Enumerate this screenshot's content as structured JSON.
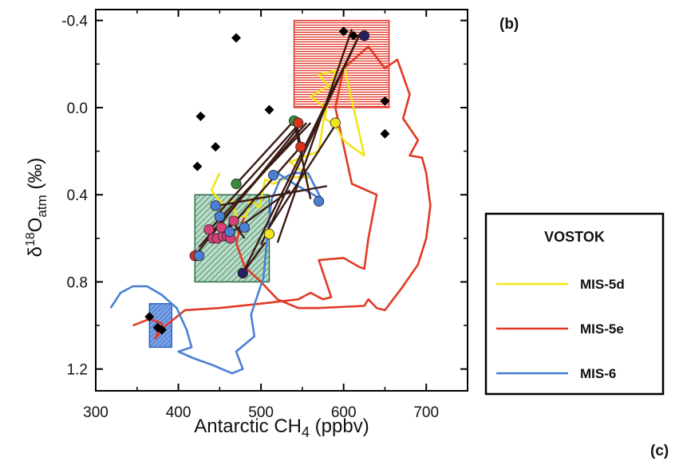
{
  "panel_labels": {
    "top": "(b)",
    "bottom": "(c)"
  },
  "colors": {
    "MIS-5d": "#f2e418",
    "MIS-5e": "#e03a24",
    "MIS-6": "#4a7fd4",
    "connector": "#3a1a14",
    "diamond": "#000000",
    "box_red": "#e0342a",
    "box_green": "#2f6e4a",
    "box_blue": "#2f68c6",
    "dot_pink": "#d8407a",
    "dot_navy": "#2a1f5e",
    "dot_green": "#3a8a3c",
    "dot_red": "#d8321e",
    "dot_yellow": "#f2e418",
    "dot_blue": "#4a7fd4"
  },
  "chart_data": {
    "type": "scatter",
    "title": "",
    "xlabel": "Antarctic CH",
    "xlabel_sub": "4",
    "xlabel_unit": " (ppbv)",
    "ylabel_parts": {
      "delta": "δ",
      "sup": "18",
      "O": "O",
      "sub": "atm",
      "unit": " (‰)"
    },
    "xlim": [
      300,
      750
    ],
    "ylim": [
      1.3,
      -0.45
    ],
    "x_ticks": [
      300,
      400,
      500,
      600,
      700
    ],
    "x_tick_labels": [
      "300",
      "400",
      "500",
      "600",
      "700"
    ],
    "y_ticks": [
      -0.4,
      0.0,
      0.4,
      0.8,
      1.2
    ],
    "y_tick_labels": [
      "-0.4",
      "0.0",
      "0.4",
      "0.8",
      "1.2"
    ],
    "legend": {
      "title": "VOSTOK",
      "position": "right",
      "entries": [
        "MIS-5d",
        "MIS-5e",
        "MIS-6"
      ]
    },
    "boxes": [
      {
        "name": "red",
        "x": [
          540,
          655
        ],
        "y": [
          -0.4,
          0.0
        ],
        "color_key": "box_red"
      },
      {
        "name": "green",
        "x": [
          420,
          510
        ],
        "y": [
          0.4,
          0.8
        ],
        "color_key": "box_green"
      },
      {
        "name": "blue",
        "x": [
          365,
          392
        ],
        "y": [
          0.9,
          1.1
        ],
        "color_key": "box_blue"
      }
    ],
    "series": [
      {
        "name": "MIS-5e",
        "color_key": "MIS-5e",
        "x": [
          345,
          365,
          380,
          372,
          385,
          408,
          450,
          500,
          545,
          560,
          575,
          585,
          570,
          600,
          618,
          625,
          630,
          640,
          610,
          590,
          600,
          630,
          650,
          665,
          680,
          672,
          690,
          680,
          695,
          700,
          705,
          700,
          690,
          670,
          650,
          640,
          630,
          625,
          570,
          545,
          520,
          500,
          480,
          470,
          475,
          480
        ],
        "y": [
          1.0,
          0.97,
          0.99,
          1.06,
          1.0,
          0.93,
          0.92,
          0.9,
          0.88,
          0.85,
          0.88,
          0.87,
          0.7,
          0.69,
          0.73,
          0.74,
          0.6,
          0.4,
          0.35,
          0.0,
          -0.18,
          -0.28,
          -0.18,
          -0.22,
          -0.06,
          0.05,
          0.15,
          0.22,
          0.23,
          0.3,
          0.45,
          0.6,
          0.72,
          0.83,
          0.93,
          0.92,
          0.88,
          0.91,
          0.92,
          0.92,
          0.88,
          0.8,
          0.73,
          0.62,
          0.55,
          0.5
        ]
      },
      {
        "name": "MIS-5d",
        "color_key": "MIS-5d",
        "x": [
          450,
          440,
          455,
          465,
          470,
          482,
          487,
          498,
          505,
          515,
          533,
          560,
          535,
          570,
          578,
          560,
          582,
          570,
          590,
          582,
          577,
          590,
          600,
          610,
          625,
          600
        ],
        "y": [
          0.3,
          0.38,
          0.45,
          0.42,
          0.5,
          0.5,
          0.42,
          0.46,
          0.33,
          0.35,
          0.32,
          0.32,
          0.25,
          0.2,
          0.0,
          -0.05,
          -0.1,
          -0.15,
          -0.17,
          -0.05,
          0.05,
          0.08,
          0.15,
          0.18,
          0.22,
          -0.2
        ]
      },
      {
        "name": "MIS-6",
        "color_key": "MIS-6",
        "x": [
          318,
          330,
          345,
          362,
          380,
          398,
          410,
          416,
          400,
          418,
          440,
          465,
          478,
          470,
          492,
          488,
          503,
          508,
          513,
          523,
          540,
          557,
          573,
          540,
          520
        ],
        "y": [
          0.92,
          0.85,
          0.82,
          0.82,
          0.86,
          0.92,
          1.02,
          1.1,
          1.12,
          1.15,
          1.18,
          1.22,
          1.2,
          1.12,
          1.05,
          0.95,
          0.78,
          0.58,
          0.42,
          0.33,
          0.3,
          0.3,
          0.42,
          0.35,
          0.3
        ]
      }
    ],
    "diamonds": {
      "x": [
        470,
        600,
        612,
        650,
        650,
        427,
        423,
        445,
        510,
        365,
        375,
        380
      ],
      "y": [
        -0.32,
        -0.35,
        -0.33,
        0.12,
        -0.03,
        0.04,
        0.27,
        0.18,
        0.01,
        0.96,
        1.01,
        1.02
      ]
    },
    "connectors": [
      {
        "x": [
          420,
          550
        ],
        "y": [
          0.68,
          0.07
        ]
      },
      {
        "x": [
          425,
          555
        ],
        "y": [
          0.64,
          0.07
        ]
      },
      {
        "x": [
          435,
          560
        ],
        "y": [
          0.57,
          0.07
        ]
      },
      {
        "x": [
          445,
          545
        ],
        "y": [
          0.5,
          0.08
        ]
      },
      {
        "x": [
          448,
          580
        ],
        "y": [
          0.45,
          0.36
        ]
      },
      {
        "x": [
          455,
          535
        ],
        "y": [
          0.6,
          0.38
        ]
      },
      {
        "x": [
          460,
          548
        ],
        "y": [
          0.56,
          0.18
        ]
      },
      {
        "x": [
          470,
          540
        ],
        "y": [
          0.35,
          0.06
        ]
      },
      {
        "x": [
          478,
          505
        ],
        "y": [
          0.76,
          0.62
        ]
      },
      {
        "x": [
          478,
          620
        ],
        "y": [
          0.76,
          -0.34
        ]
      },
      {
        "x": [
          500,
          620
        ],
        "y": [
          0.63,
          -0.34
        ]
      },
      {
        "x": [
          510,
          590
        ],
        "y": [
          0.55,
          0.08
        ]
      },
      {
        "x": [
          520,
          610
        ],
        "y": [
          0.62,
          -0.36
        ]
      },
      {
        "x": [
          455,
          465
        ],
        "y": [
          0.58,
          0.52
        ]
      },
      {
        "x": [
          465,
          480
        ],
        "y": [
          0.52,
          0.6
        ]
      },
      {
        "x": [
          540,
          560
        ],
        "y": [
          0.06,
          0.42
        ]
      },
      {
        "x": [
          543,
          548
        ],
        "y": [
          0.07,
          0.18
        ]
      }
    ],
    "dots": [
      {
        "x": [
          437,
          442,
          447,
          454,
          459,
          463,
          467,
          452
        ],
        "y": [
          0.56,
          0.6,
          0.6,
          0.59,
          0.59,
          0.6,
          0.52,
          0.55
        ],
        "color_key": "dot_pink"
      },
      {
        "x": [
          478,
          625
        ],
        "y": [
          0.76,
          -0.33
        ],
        "color_key": "dot_navy"
      },
      {
        "x": [
          470,
          540
        ],
        "y": [
          0.35,
          0.06
        ],
        "color_key": "dot_green"
      },
      {
        "x": [
          420,
          548,
          545
        ],
        "y": [
          0.68,
          0.18,
          0.07
        ],
        "color_key": "dot_red"
      },
      {
        "x": [
          510,
          590
        ],
        "y": [
          0.58,
          0.07
        ],
        "color_key": "dot_yellow"
      },
      {
        "x": [
          425,
          445,
          450,
          480,
          515,
          570,
          462
        ],
        "y": [
          0.68,
          0.45,
          0.5,
          0.55,
          0.31,
          0.43,
          0.57
        ],
        "color_key": "dot_blue"
      }
    ]
  }
}
